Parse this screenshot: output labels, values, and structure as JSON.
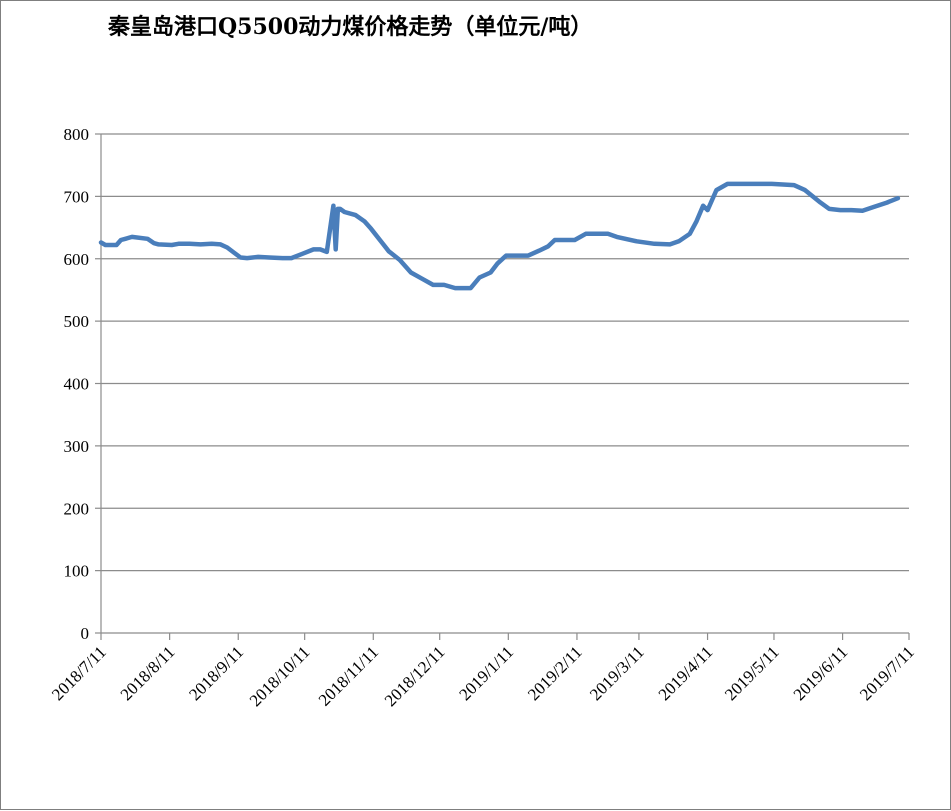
{
  "chart_data": {
    "type": "line",
    "title": "秦皇岛港口Q5500动力煤价格走势（单位元/吨）",
    "xlabel": "",
    "ylabel": "",
    "ylim": [
      0,
      800
    ],
    "yticks": [
      0,
      100,
      200,
      300,
      400,
      500,
      600,
      700,
      800
    ],
    "xlim": [
      "2018/7/11",
      "2019/7/11"
    ],
    "xticks": [
      "2018/7/11",
      "2018/8/11",
      "2018/9/11",
      "2018/10/11",
      "2018/11/11",
      "2018/12/11",
      "2019/1/11",
      "2019/2/11",
      "2019/3/11",
      "2019/4/11",
      "2019/5/11",
      "2019/6/11",
      "2019/7/11"
    ],
    "grid": "horizontal",
    "legend": "none",
    "line_color": "#4a7ebb",
    "series": [
      {
        "x": [
          "2018/7/11",
          "2018/7/13",
          "2018/7/18",
          "2018/7/20",
          "2018/7/22",
          "2018/7/25",
          "2018/8/1",
          "2018/8/4",
          "2018/8/6",
          "2018/8/12",
          "2018/8/15",
          "2018/8/20",
          "2018/8/25",
          "2018/8/30",
          "2018/9/3",
          "2018/9/6",
          "2018/9/9",
          "2018/9/12",
          "2018/9/15",
          "2018/9/20",
          "2018/9/25",
          "2018/10/1",
          "2018/10/5",
          "2018/10/10",
          "2018/10/15",
          "2018/10/18",
          "2018/10/21",
          "2018/10/24",
          "2018/10/25",
          "2018/10/26",
          "2018/10/27",
          "2018/10/29",
          "2018/11/3",
          "2018/11/7",
          "2018/11/10",
          "2018/11/14",
          "2018/11/18",
          "2018/11/23",
          "2018/11/28",
          "2018/12/3",
          "2018/12/8",
          "2018/12/13",
          "2018/12/18",
          "2018/12/25",
          "2018/12/29",
          "2019/1/3",
          "2019/1/6",
          "2019/1/10",
          "2019/1/15",
          "2019/1/20",
          "2019/1/25",
          "2019/1/29",
          "2019/2/1",
          "2019/2/10",
          "2019/2/15",
          "2019/2/25",
          "2019/3/1",
          "2019/3/10",
          "2019/3/18",
          "2019/3/25",
          "2019/3/29",
          "2019/4/3",
          "2019/4/6",
          "2019/4/9",
          "2019/4/11",
          "2019/4/15",
          "2019/4/20",
          "2019/4/25",
          "2019/5/1",
          "2019/5/10",
          "2019/5/20",
          "2019/5/25",
          "2019/6/1",
          "2019/6/5",
          "2019/6/10",
          "2019/6/15",
          "2019/6/20",
          "2019/6/25",
          "2019/7/1",
          "2019/7/6"
        ],
        "y": [
          626,
          622,
          622,
          630,
          632,
          635,
          632,
          625,
          623,
          622,
          624,
          624,
          623,
          624,
          623,
          618,
          610,
          602,
          601,
          603,
          602,
          601,
          601,
          608,
          615,
          615,
          611,
          685,
          615,
          680,
          680,
          675,
          670,
          660,
          648,
          630,
          612,
          598,
          578,
          568,
          558,
          558,
          553,
          553,
          570,
          578,
          592,
          605,
          605,
          605,
          613,
          620,
          630,
          630,
          640,
          640,
          635,
          628,
          624,
          623,
          628,
          640,
          660,
          685,
          678,
          710,
          720,
          720,
          720,
          720,
          718,
          710,
          690,
          680,
          678,
          678,
          677,
          683,
          690,
          697
        ]
      }
    ]
  }
}
